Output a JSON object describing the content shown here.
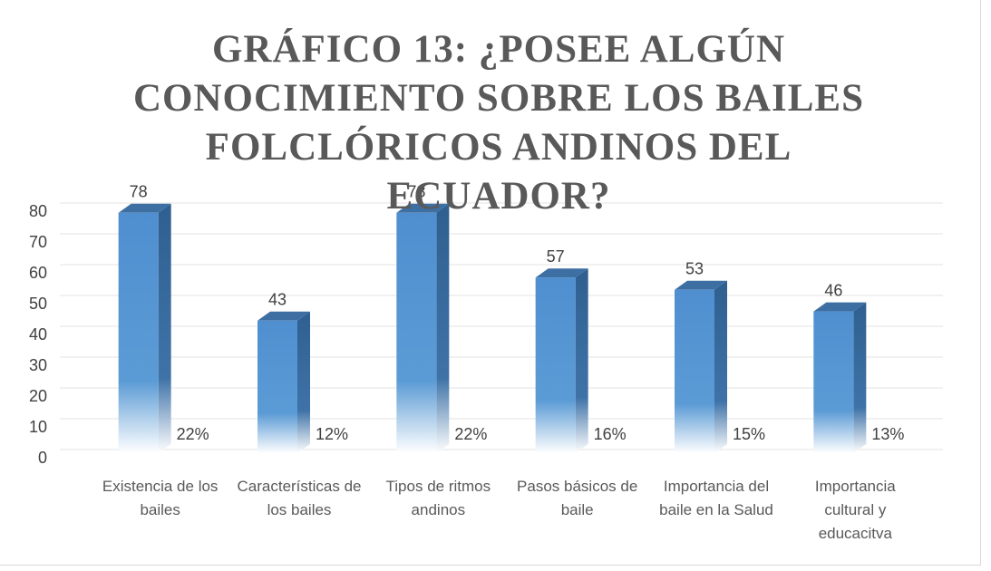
{
  "chart_data": {
    "type": "bar3d",
    "title": "GRÁFICO 13: ¿POSEE ALGÚN CONOCIMIENTO SOBRE LOS BAILES FOLCLÓRICOS ANDINOS DEL ECUADOR?",
    "categories": [
      "Existencia de los bailes",
      "Características de los bailes",
      "Tipos de ritmos andinos",
      "Pasos básicos de baile",
      "Importancia del baile en la Salud",
      "Importancia cultural y educacitva"
    ],
    "series": [
      {
        "color": "#5b9bd5",
        "values": [
          78,
          43,
          78,
          57,
          53,
          46
        ]
      },
      {
        "color": "#c55a11",
        "values": [
          0.22,
          0.12,
          0.22,
          0.16,
          0.15,
          0.13
        ],
        "value_labels": [
          "22%",
          "12%",
          "22%",
          "16%",
          "15%",
          "13%"
        ]
      }
    ],
    "ylim": [
      0,
      80
    ],
    "yticks": [
      0,
      10,
      20,
      30,
      40,
      50,
      60,
      70,
      80
    ],
    "grid": true
  }
}
